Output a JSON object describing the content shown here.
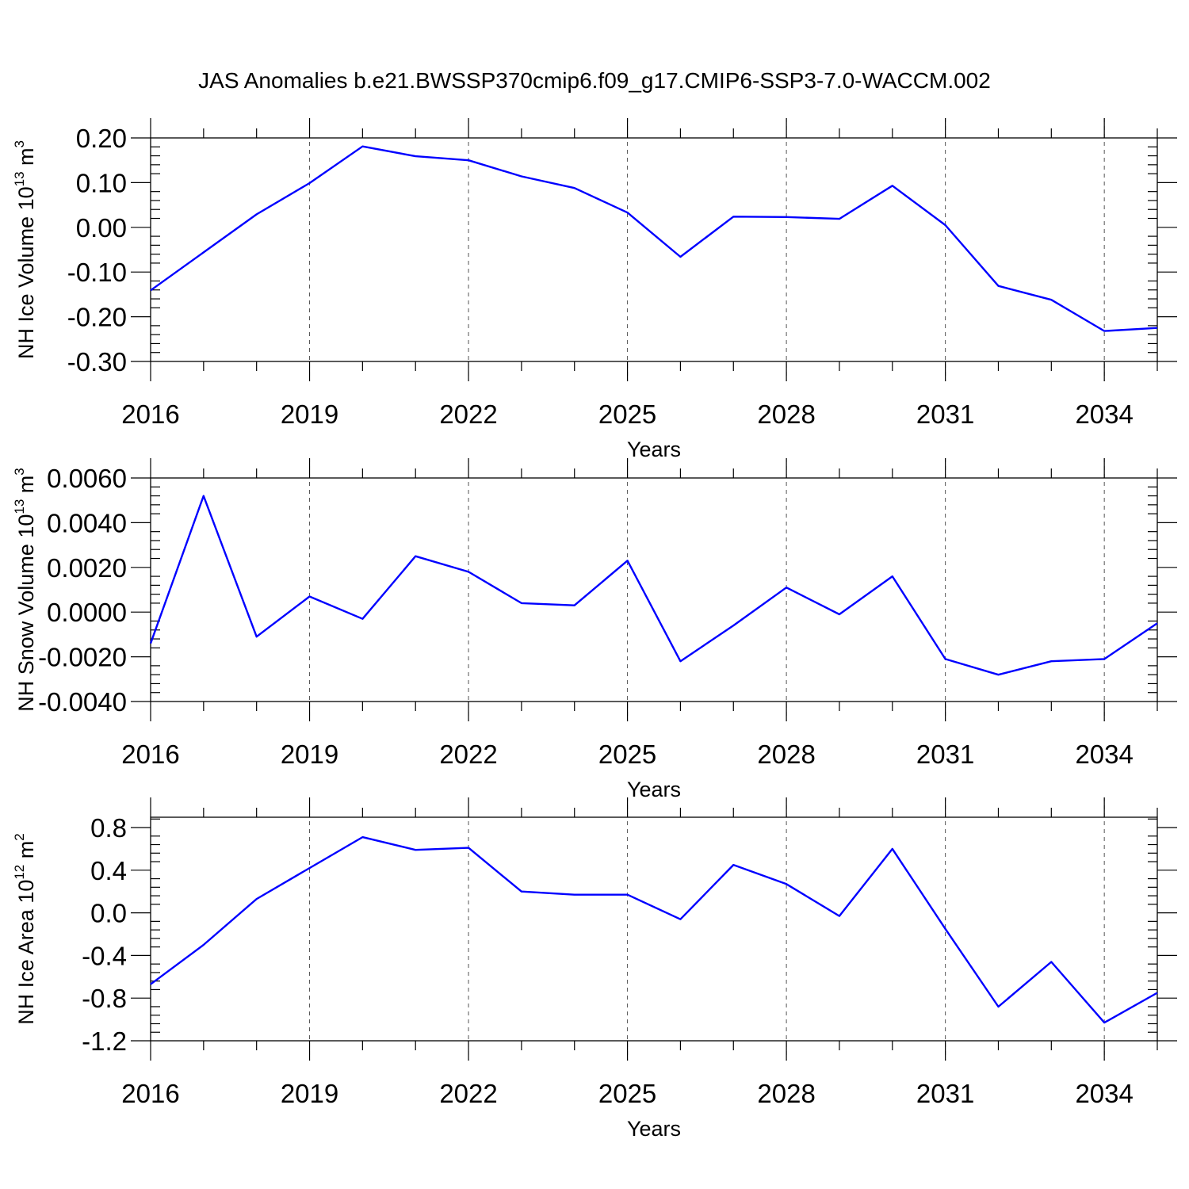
{
  "title": "JAS Anomalies b.e21.BWSSP370cmip6.f09_g17.CMIP6-SSP3-7.0-WACCM.002",
  "colors": {
    "series": "#0000ff",
    "grid": "#555555"
  },
  "chart_data": [
    {
      "type": "line",
      "ylabel": "NH Ice Volume 10",
      "ylabel_exp": "13",
      "ylabel_unit": " m",
      "ylabel_unit_exp": "3",
      "xlabel": "Years",
      "xlim": [
        2016,
        2035
      ],
      "ylim": [
        -0.3,
        0.2
      ],
      "yticks": [
        -0.3,
        -0.2,
        -0.1,
        0.0,
        0.1,
        0.2
      ],
      "ytick_labels": [
        "-0.30",
        "-0.20",
        "-0.10",
        "0.00",
        "0.10",
        "0.20"
      ],
      "xticks": [
        2016,
        2019,
        2022,
        2025,
        2028,
        2031,
        2034
      ],
      "xtick_labels": [
        "2016",
        "2019",
        "2022",
        "2025",
        "2028",
        "2031",
        "2034"
      ],
      "grid": "vertical dashed",
      "x": [
        2016,
        2017,
        2018,
        2019,
        2020,
        2021,
        2022,
        2023,
        2024,
        2025,
        2026,
        2027,
        2028,
        2029,
        2030,
        2031,
        2032,
        2033,
        2034,
        2035
      ],
      "values": [
        -0.141,
        -0.056,
        0.029,
        0.099,
        0.181,
        0.159,
        0.15,
        0.114,
        0.088,
        0.033,
        -0.066,
        0.024,
        0.023,
        0.019,
        0.093,
        0.005,
        -0.131,
        -0.162,
        -0.232,
        -0.225
      ]
    },
    {
      "type": "line",
      "ylabel": "NH Snow Volume 10",
      "ylabel_exp": "13",
      "ylabel_unit": " m",
      "ylabel_unit_exp": "3",
      "xlabel": "Years",
      "xlim": [
        2016,
        2035
      ],
      "ylim": [
        -0.004,
        0.006
      ],
      "yticks": [
        -0.004,
        -0.002,
        0.0,
        0.002,
        0.004,
        0.006
      ],
      "ytick_labels": [
        "-0.0040",
        "-0.0020",
        "0.0000",
        "0.0020",
        "0.0040",
        "0.0060"
      ],
      "xticks": [
        2016,
        2019,
        2022,
        2025,
        2028,
        2031,
        2034
      ],
      "xtick_labels": [
        "2016",
        "2019",
        "2022",
        "2025",
        "2028",
        "2031",
        "2034"
      ],
      "grid": "vertical dashed",
      "x": [
        2016,
        2017,
        2018,
        2019,
        2020,
        2021,
        2022,
        2023,
        2024,
        2025,
        2026,
        2027,
        2028,
        2029,
        2030,
        2031,
        2032,
        2033,
        2034,
        2035
      ],
      "values": [
        -0.0014,
        0.0052,
        -0.0011,
        0.0007,
        -0.0003,
        0.0025,
        0.0018,
        0.0004,
        0.0003,
        0.0023,
        -0.0022,
        -0.0006,
        0.0011,
        -0.0001,
        0.0016,
        -0.0021,
        -0.0028,
        -0.0022,
        -0.0021,
        -0.0005
      ]
    },
    {
      "type": "line",
      "ylabel": "NH Ice Area 10",
      "ylabel_exp": "12",
      "ylabel_unit": " m",
      "ylabel_unit_exp": "2",
      "xlabel": "Years",
      "xlim": [
        2016,
        2035
      ],
      "ylim": [
        -1.2,
        0.9
      ],
      "yticks": [
        -1.2,
        -0.8,
        -0.4,
        0.0,
        0.4,
        0.8
      ],
      "ytick_labels": [
        "-1.2",
        "-0.8",
        "-0.4",
        "0.0",
        "0.4",
        "0.8"
      ],
      "xticks": [
        2016,
        2019,
        2022,
        2025,
        2028,
        2031,
        2034
      ],
      "xtick_labels": [
        "2016",
        "2019",
        "2022",
        "2025",
        "2028",
        "2031",
        "2034"
      ],
      "grid": "vertical dashed",
      "x": [
        2016,
        2017,
        2018,
        2019,
        2020,
        2021,
        2022,
        2023,
        2024,
        2025,
        2026,
        2027,
        2028,
        2029,
        2030,
        2031,
        2032,
        2033,
        2034,
        2035
      ],
      "values": [
        -0.67,
        -0.3,
        0.13,
        0.42,
        0.71,
        0.59,
        0.61,
        0.2,
        0.17,
        0.17,
        -0.06,
        0.45,
        0.27,
        -0.03,
        0.6,
        -0.15,
        -0.88,
        -0.46,
        -1.03,
        -0.75
      ]
    }
  ]
}
